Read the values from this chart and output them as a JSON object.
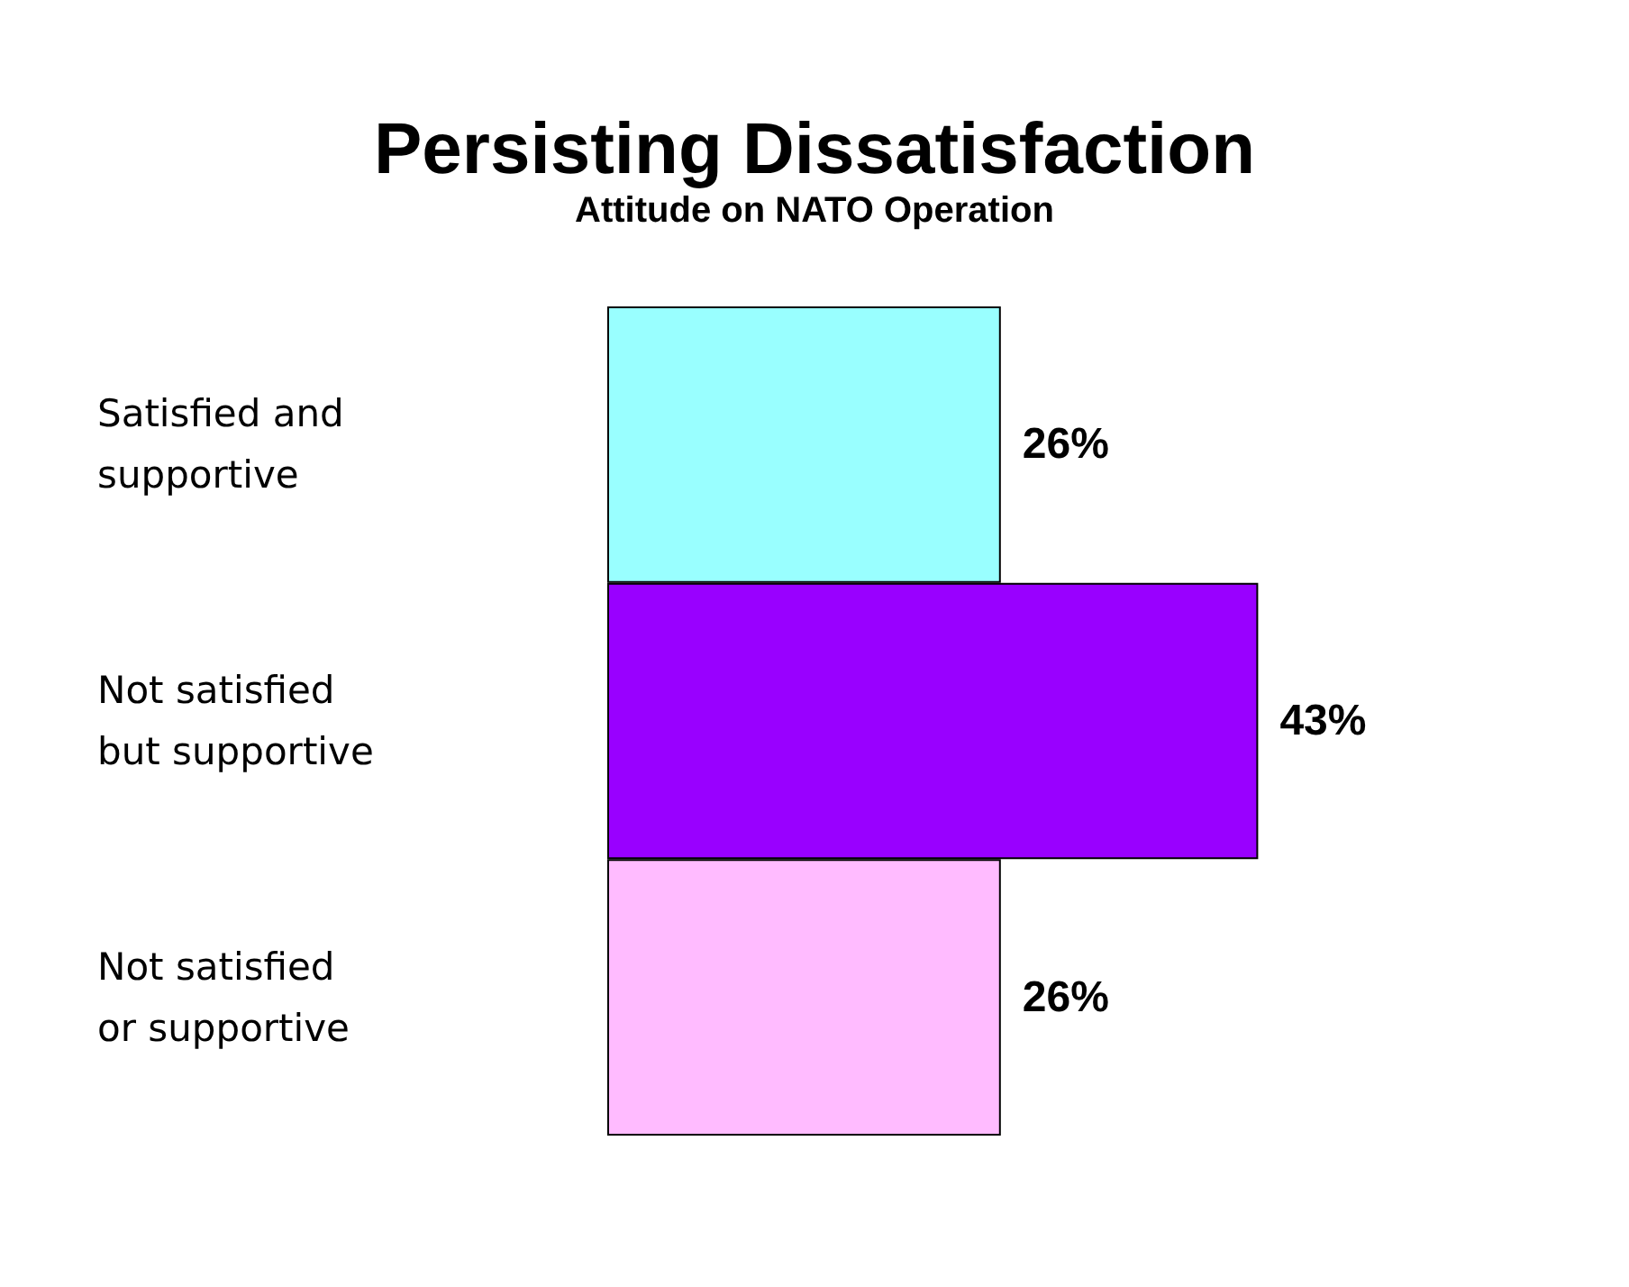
{
  "chart_data": {
    "type": "bar",
    "orientation": "horizontal",
    "title": "Persisting Dissatisfaction",
    "subtitle": "Attitude on NATO Operation",
    "categories": [
      "Satisfied and supportive",
      "Not satisfied but supportive",
      "Not satisfied or supportive"
    ],
    "values": [
      26,
      43,
      26
    ],
    "colors": [
      "#99ffff",
      "#9900ff",
      "#ffbbff"
    ],
    "value_labels": [
      "26%",
      "43%",
      "26%"
    ]
  }
}
